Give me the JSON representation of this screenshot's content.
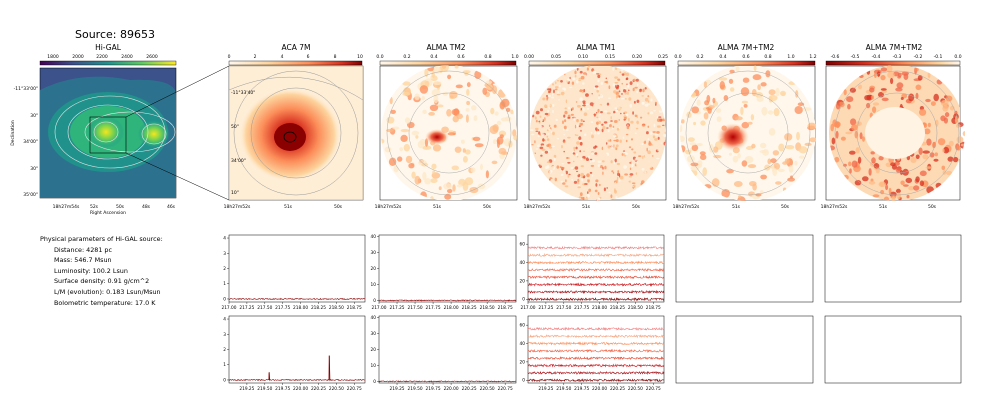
{
  "source_title": "Source: 89653",
  "panels": {
    "higal": {
      "title": "Hi-GAL",
      "cbar_ticks": [
        "1800",
        "2000",
        "2200",
        "2400",
        "2600"
      ],
      "ra_ticks": [
        "18h27m54s",
        "52s",
        "50s",
        "48s",
        "46s"
      ],
      "dec_ticks": [
        "-11°33'00\"",
        "30\"",
        "34'00\"",
        "30\"",
        "35'00\""
      ],
      "xlabel": "Right Ascension",
      "ylabel": "Declination"
    },
    "aca7m": {
      "title": "ACA 7M",
      "cbar_ticks": [
        "0",
        "2",
        "4",
        "6",
        "8",
        "10"
      ],
      "ra_ticks": [
        "18h27m52s",
        "51s",
        "50s"
      ],
      "dec_ticks": [
        "-11°33'40\"",
        "50\"",
        "34'00\"",
        "10\""
      ]
    },
    "tm2": {
      "title": "ALMA TM2",
      "cbar_ticks": [
        "0.0",
        "0.2",
        "0.4",
        "0.6",
        "0.8",
        "1.0"
      ],
      "ra_ticks": [
        "18h27m52s",
        "51s",
        "50s"
      ]
    },
    "tm1": {
      "title": "ALMA TM1",
      "cbar_ticks": [
        "0.00",
        "0.05",
        "0.10",
        "0.15",
        "0.20",
        "0.25"
      ],
      "ra_ticks": [
        "18h27m52s",
        "51s",
        "50s"
      ]
    },
    "combo": {
      "title": "ALMA 7M+TM2",
      "cbar_ticks": [
        "0.0",
        "0.2",
        "0.4",
        "0.6",
        "0.8",
        "1.0",
        "1.2"
      ],
      "ra_ticks": [
        "18h27m52s",
        "51s",
        "50s"
      ]
    },
    "combo2": {
      "title": "ALMA 7M+TM2",
      "cbar_ticks": [
        "-0.6",
        "-0.5",
        "-0.4",
        "-0.3",
        "-0.2",
        "-0.1",
        "0.0"
      ],
      "ra_ticks": [
        "18h27m52s",
        "51s",
        "50s"
      ]
    }
  },
  "params": {
    "heading": "Physical parameters of Hi-GAL source:",
    "distance": "Distance: 4281 pc",
    "mass": "Mass: 546.7 Msun",
    "luminosity": "Luminosity: 100.2 Lsun",
    "surface_density": "Surface density: 0.91 g/cm^2",
    "lm": "L/M (evolution): 0.183 Lsun/Msun",
    "tbol": "Bolometric temperature: 17.0 K"
  },
  "chart_data": [
    {
      "type": "line",
      "panel": "ACA 7M spectrum (upper)",
      "x_ticks": [
        "217.00",
        "217.25",
        "217.50",
        "217.75",
        "218.00",
        "218.25",
        "218.50",
        "218.75"
      ],
      "y_ticks": [
        "0",
        "1",
        "2",
        "3",
        "4"
      ],
      "xlim": [
        217.0,
        218.9
      ],
      "ylim": [
        -0.2,
        4.2
      ],
      "series": [
        {
          "values_level": 0.0
        }
      ]
    },
    {
      "type": "line",
      "panel": "ALMA TM2 spectrum (upper)",
      "x_ticks": [
        "217.00",
        "217.25",
        "217.50",
        "217.75",
        "218.00",
        "218.25",
        "218.50",
        "218.75"
      ],
      "y_ticks": [
        "0",
        "10",
        "20",
        "30",
        "40"
      ],
      "xlim": [
        217.0,
        218.9
      ],
      "ylim": [
        -1,
        41
      ],
      "series": [
        {
          "values_level": 0.0
        }
      ]
    },
    {
      "type": "line",
      "panel": "ALMA TM1 spectrum (upper)",
      "x_ticks": [
        "217.00",
        "217.25",
        "217.50",
        "217.75",
        "218.00",
        "218.25",
        "218.50",
        "218.75"
      ],
      "y_ticks": [
        "0",
        "20",
        "40",
        "60"
      ],
      "xlim": [
        217.0,
        218.9
      ],
      "ylim": [
        -3,
        70
      ],
      "series": [
        {
          "offsets": [
            0,
            8,
            16,
            24,
            32,
            40,
            48,
            56
          ]
        }
      ]
    },
    {
      "type": "line",
      "panel": "ACA 7M spectrum (lower)",
      "x_ticks": [
        "219.25",
        "219.50",
        "219.75",
        "220.00",
        "220.25",
        "220.50",
        "220.75"
      ],
      "y_ticks": [
        "0",
        "1",
        "2",
        "3",
        "4"
      ],
      "xlim": [
        219.0,
        220.9
      ],
      "ylim": [
        -0.2,
        4.2
      ],
      "peaks": [
        {
          "x": 219.56,
          "y": 0.5
        },
        {
          "x": 220.4,
          "y": 1.6
        }
      ]
    },
    {
      "type": "line",
      "panel": "ALMA TM2 spectrum (lower)",
      "x_ticks": [
        "219.25",
        "219.50",
        "219.75",
        "220.00",
        "220.25",
        "220.50",
        "220.75"
      ],
      "y_ticks": [
        "0",
        "10",
        "20",
        "30",
        "40"
      ],
      "xlim": [
        219.0,
        220.9
      ],
      "ylim": [
        -1,
        41
      ],
      "series": [
        {
          "values_level": 0.0
        }
      ]
    },
    {
      "type": "line",
      "panel": "ALMA TM1 spectrum (lower)",
      "x_ticks": [
        "219.25",
        "219.50",
        "219.75",
        "220.00",
        "220.25",
        "220.50",
        "220.75"
      ],
      "y_ticks": [
        "0",
        "20",
        "40",
        "60"
      ],
      "xlim": [
        219.0,
        220.9
      ],
      "ylim": [
        -3,
        70
      ],
      "series": [
        {
          "offsets": [
            0,
            8,
            16,
            24,
            32,
            40,
            48,
            56
          ]
        }
      ]
    }
  ]
}
